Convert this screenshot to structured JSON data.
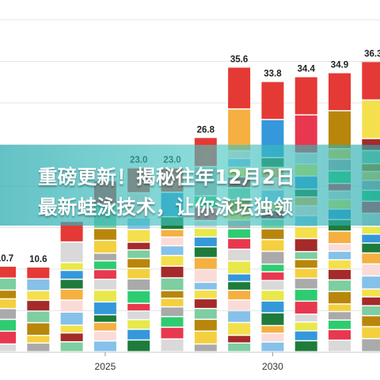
{
  "headline": {
    "line1": "重磅更新！揭秘往年12月2日",
    "line2": "最新蛙泳技术，让你泳坛独领"
  },
  "chart_data": {
    "type": "bar",
    "stacked": true,
    "grid": "horizontal",
    "x_tick_labels": [
      {
        "year": 2025,
        "label": "2025"
      },
      {
        "year": 2030,
        "label": "2030"
      }
    ],
    "bars": [
      {
        "year": 2022,
        "total": 10.7,
        "label": "10.7"
      },
      {
        "year": 2023,
        "total": 10.6,
        "label": "10.6"
      },
      {
        "year": 2024,
        "total": 16.3,
        "label": ""
      },
      {
        "year": 2025,
        "total": 21.4,
        "label": ""
      },
      {
        "year": 2026,
        "total": 23.0,
        "label": "23.0"
      },
      {
        "year": 2027,
        "total": 23.0,
        "label": "23.0"
      },
      {
        "year": 2028,
        "total": 26.8,
        "label": "26.8"
      },
      {
        "year": 2029,
        "total": 35.6,
        "label": "35.6"
      },
      {
        "year": 2030,
        "total": 33.8,
        "label": "33.8"
      },
      {
        "year": 2031,
        "total": 34.4,
        "label": "34.4"
      },
      {
        "year": 2032,
        "total": 34.9,
        "label": "34.9"
      },
      {
        "year": 2033,
        "total": 36.3,
        "label": "36.3"
      }
    ],
    "segment_colors": [
      "#d9d9d9",
      "#e8384f",
      "#2ecc71",
      "#aaaaaa",
      "#f4d03f",
      "#b8860b",
      "#7dcea0",
      "#a52a2a",
      "#f4e04d",
      "#85c1e9",
      "#fadbd8",
      "#f5b041",
      "#1e7b3a",
      "#3498db",
      "#e8e84a",
      "#e53935"
    ]
  }
}
